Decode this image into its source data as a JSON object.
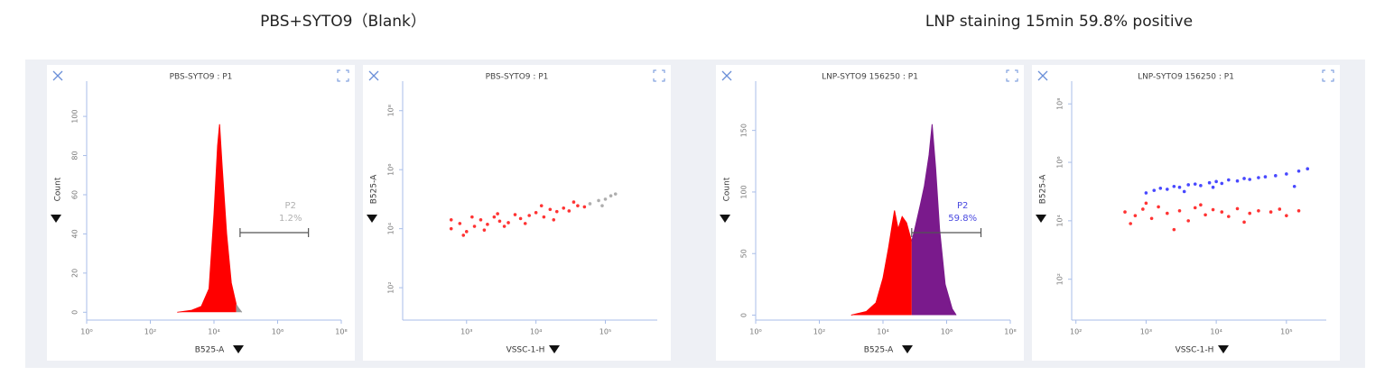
{
  "figure_titles": [
    "PBS+SYTO9（Blank）",
    "LNP staining 15min 59.8% positive"
  ],
  "chart_data": [
    {
      "type": "area",
      "title": "PBS-SYTO9 : P1",
      "xlabel": "B525-A",
      "ylabel": "Count",
      "xscale": "log",
      "yscale": "linear",
      "xlim": [
        1,
        100000000
      ],
      "ylim": [
        -4,
        118
      ],
      "xticks": [
        {
          "value": 1,
          "label": "10⁰"
        },
        {
          "value": 100,
          "label": "10²"
        },
        {
          "value": 10000,
          "label": "10⁴"
        },
        {
          "value": 1000000,
          "label": "10⁶"
        },
        {
          "value": 100000000,
          "label": "10⁸"
        }
      ],
      "yticks": [
        0,
        20,
        40,
        60,
        80,
        100
      ],
      "series": [
        {
          "color": "#ff0000",
          "x": [
            700,
            2000,
            4000,
            7000,
            10000,
            13000,
            15000,
            18000,
            25000,
            35000,
            50000
          ],
          "values": [
            0,
            1,
            3,
            12,
            50,
            85,
            96,
            75,
            40,
            15,
            4
          ]
        },
        {
          "color": "#9a9a9a",
          "x": [
            50000,
            60000,
            75000
          ],
          "values": [
            4,
            2,
            0
          ]
        }
      ],
      "gate": {
        "range": [
          66000,
          9300000
        ],
        "label": "P2",
        "value_label": "1.2%",
        "color": "#b0b0b0"
      }
    },
    {
      "type": "scatter",
      "title": "PBS-SYTO9 : P1",
      "xlabel": "VSSC-1-H",
      "ylabel": "B525-A",
      "xscale": "log",
      "yscale": "log",
      "xlim": [
        120,
        560000
      ],
      "ylim": [
        8,
        1000000000
      ],
      "xticks": [
        {
          "value": 1000,
          "label": "10³"
        },
        {
          "value": 10000,
          "label": "10⁴"
        },
        {
          "value": 100000,
          "label": "10⁵"
        }
      ],
      "yticks": [
        {
          "value": 100,
          "label": "10²"
        },
        {
          "value": 10000,
          "label": "10⁴"
        },
        {
          "value": 1000000,
          "label": "10⁶"
        },
        {
          "value": 100000000,
          "label": "10⁸"
        }
      ],
      "series": [
        {
          "color": "#ff0000",
          "x": [
            600,
            800,
            1000,
            1300,
            1600,
            2000,
            2500,
            3000,
            4000,
            5000,
            6000,
            8000,
            10000,
            13000,
            16000,
            20000,
            25000,
            30000,
            40000,
            50000,
            600,
            900,
            1200,
            1800,
            2800,
            3500,
            7000,
            12000,
            18000,
            35000
          ],
          "values": [
            10000,
            15000,
            8000,
            12000,
            20000,
            14000,
            25000,
            18000,
            16000,
            30000,
            22000,
            28000,
            35000,
            25000,
            45000,
            38000,
            50000,
            40000,
            60000,
            55000,
            20000,
            6000,
            25000,
            9000,
            32000,
            12000,
            15000,
            60000,
            20000,
            80000
          ]
        },
        {
          "color": "#9a9a9a",
          "x": [
            60000,
            80000,
            100000,
            120000,
            140000,
            90000
          ],
          "values": [
            70000,
            90000,
            100000,
            130000,
            150000,
            60000
          ]
        }
      ]
    },
    {
      "type": "area",
      "title": "LNP-SYTO9 156250 : P1",
      "xlabel": "B525-A",
      "ylabel": "Count",
      "xscale": "log",
      "yscale": "linear",
      "xlim": [
        1,
        100000000
      ],
      "ylim": [
        -4,
        190
      ],
      "xticks": [
        {
          "value": 1,
          "label": "10⁰"
        },
        {
          "value": 100,
          "label": "10²"
        },
        {
          "value": 10000,
          "label": "10⁴"
        },
        {
          "value": 1000000,
          "label": "10⁶"
        },
        {
          "value": 100000000,
          "label": "10⁸"
        }
      ],
      "yticks": [
        0,
        50,
        100,
        150
      ],
      "series": [
        {
          "color": "#ff0000",
          "x": [
            1000,
            3000,
            6000,
            10000,
            15000,
            23000,
            30000,
            40000,
            55000,
            70000,
            80000
          ],
          "values": [
            0,
            3,
            10,
            30,
            55,
            85,
            70,
            80,
            75,
            65,
            60
          ]
        },
        {
          "color": "#7a1a8c",
          "x": [
            80000,
            100000,
            150000,
            200000,
            280000,
            350000,
            450000,
            600000,
            900000,
            1500000,
            2000000
          ],
          "values": [
            60,
            70,
            90,
            105,
            130,
            155,
            120,
            70,
            25,
            5,
            0
          ]
        }
      ],
      "gate": {
        "range": [
          80000,
          12000000
        ],
        "label": "P2",
        "value_label": "59.8%",
        "color": "#4a4ae0"
      }
    },
    {
      "type": "scatter",
      "title": "LNP-SYTO9 156250 : P1",
      "xlabel": "VSSC-1-H",
      "ylabel": "B525-A",
      "xscale": "log",
      "yscale": "log",
      "xlim": [
        87,
        370000
      ],
      "ylim": [
        4,
        600000000
      ],
      "xticks": [
        {
          "value": 100,
          "label": "10²"
        },
        {
          "value": 1000,
          "label": "10³"
        },
        {
          "value": 10000,
          "label": "10⁴"
        },
        {
          "value": 100000,
          "label": "10⁵"
        }
      ],
      "yticks": [
        {
          "value": 100,
          "label": "10²"
        },
        {
          "value": 10000,
          "label": "10⁴"
        },
        {
          "value": 1000000,
          "label": "10⁶"
        },
        {
          "value": 100000000,
          "label": "10⁸"
        }
      ],
      "series": [
        {
          "color": "#ff0000",
          "x": [
            500,
            700,
            900,
            1200,
            1500,
            2000,
            3000,
            4000,
            5000,
            7000,
            9000,
            12000,
            15000,
            20000,
            30000,
            40000,
            60000,
            80000,
            100000,
            150000,
            600,
            1000,
            2500,
            6000,
            25000
          ],
          "values": [
            20000,
            15000,
            25000,
            12000,
            30000,
            18000,
            22000,
            10000,
            28000,
            16000,
            24000,
            20000,
            14000,
            26000,
            18000,
            22000,
            20000,
            25000,
            15000,
            22000,
            8000,
            40000,
            5000,
            35000,
            9000
          ]
        },
        {
          "color": "#1a1aff",
          "x": [
            1000,
            1300,
            1600,
            2000,
            2500,
            3000,
            4000,
            5000,
            6000,
            8000,
            10000,
            12000,
            15000,
            20000,
            25000,
            30000,
            40000,
            50000,
            70000,
            100000,
            150000,
            200000,
            3500,
            9000,
            130000
          ],
          "values": [
            90000,
            110000,
            130000,
            120000,
            150000,
            140000,
            170000,
            180000,
            160000,
            200000,
            220000,
            190000,
            250000,
            230000,
            280000,
            260000,
            300000,
            320000,
            350000,
            400000,
            500000,
            600000,
            100000,
            140000,
            150000
          ]
        }
      ]
    }
  ]
}
